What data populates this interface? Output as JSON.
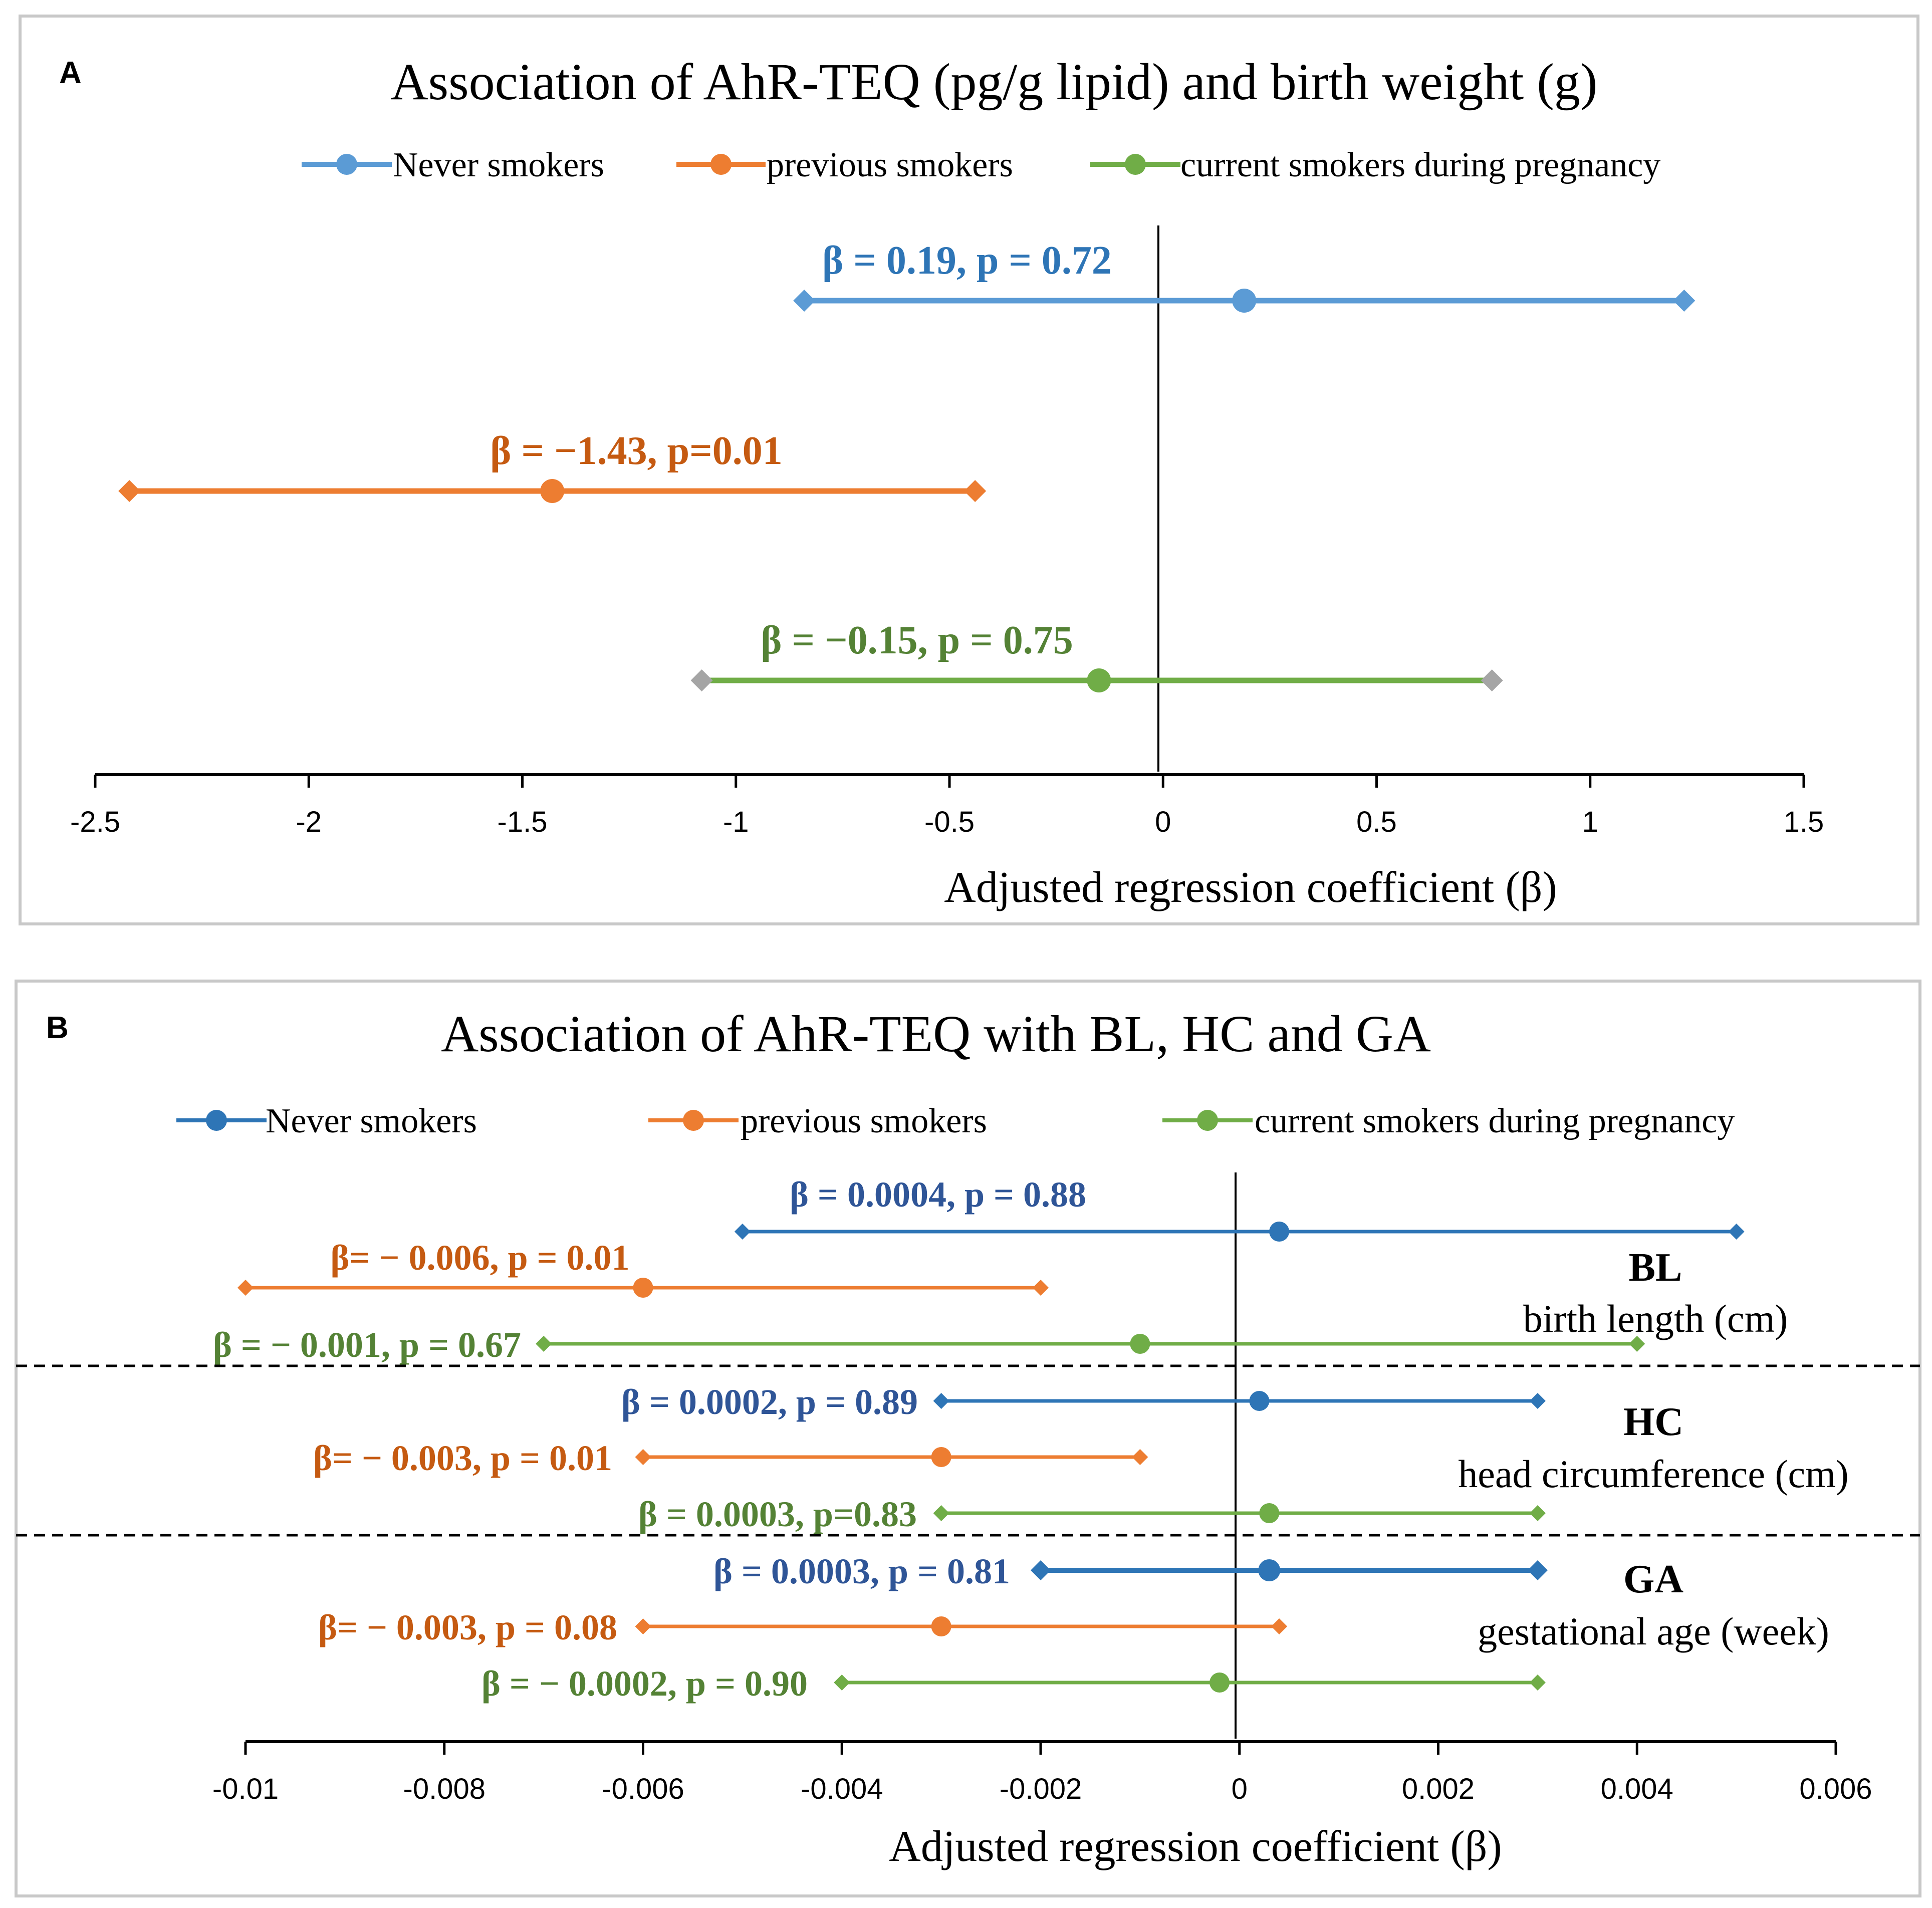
{
  "colors": {
    "never_a": "#5B9BD5",
    "previous": "#ED7D31",
    "current": "#70AD47",
    "never_b": "#2E75B6",
    "label_never_a": "#2E75B6",
    "label_previous": "#C55A11",
    "label_current": "#548235",
    "label_never_b": "#2F5597",
    "endpoint_grey": "#A5A5A5"
  },
  "chart_data": [
    {
      "panel": "A",
      "type": "forest",
      "title": "Association of AhR-TEQ (pg/g lipid) and birth weight (g)",
      "xlabel": "Adjusted regression coefficient (β)",
      "xlim": [
        -2.5,
        1.5
      ],
      "xticks": [
        -2.5,
        -2,
        -1.5,
        -1,
        -0.5,
        0,
        0.5,
        1,
        1.5
      ],
      "xtick_labels": [
        "-2.5",
        "-2",
        "-1.5",
        "-1",
        "-0.5",
        "0",
        "0.5",
        "1",
        "1.5"
      ],
      "legend": [
        "Never smokers",
        "previous smokers",
        "current smokers during pregnancy"
      ],
      "series": [
        {
          "name": "Never smokers",
          "estimate": 0.19,
          "lower": -0.84,
          "upper": 1.22,
          "label": "β = 0.19, p = 0.72"
        },
        {
          "name": "previous smokers",
          "estimate": -1.43,
          "lower": -2.42,
          "upper": -0.44,
          "label": "β = −1.43, p=0.01"
        },
        {
          "name": "current smokers during pregnancy",
          "estimate": -0.15,
          "lower": -1.08,
          "upper": 0.77,
          "label": "β = −0.15, p = 0.75"
        }
      ]
    },
    {
      "panel": "B",
      "type": "forest",
      "title": "Association of AhR-TEQ with BL, HC and  GA",
      "xlabel": "Adjusted regression coefficient (β)",
      "xlim": [
        -0.01,
        0.006
      ],
      "xticks": [
        -0.01,
        -0.008,
        -0.006,
        -0.004,
        -0.002,
        0,
        0.002,
        0.004,
        0.006
      ],
      "xtick_labels": [
        "-0.01",
        "-0.008",
        "-0.006",
        "-0.004",
        "-0.002",
        "0",
        "0.002",
        "0.004",
        "0.006"
      ],
      "legend": [
        "Never smokers",
        "previous smokers",
        "current smokers during pregnancy"
      ],
      "groups": [
        {
          "abbr": "BL",
          "desc": "birth length (cm)",
          "rows": [
            {
              "name": "Never smokers",
              "estimate": 0.0004,
              "lower": -0.005,
              "upper": 0.005,
              "label": "β = 0.0004, p = 0.88"
            },
            {
              "name": "previous smokers",
              "estimate": -0.006,
              "lower": -0.01,
              "upper": -0.002,
              "label": "β= − 0.006, p = 0.01"
            },
            {
              "name": "current smokers during pregnancy",
              "estimate": -0.001,
              "lower": -0.007,
              "upper": 0.004,
              "label": "β = − 0.001, p = 0.67"
            }
          ]
        },
        {
          "abbr": "HC",
          "desc": "head circumference (cm)",
          "rows": [
            {
              "name": "Never smokers",
              "estimate": 0.0002,
              "lower": -0.003,
              "upper": 0.003,
              "label": "β = 0.0002, p = 0.89"
            },
            {
              "name": "previous smokers",
              "estimate": -0.003,
              "lower": -0.006,
              "upper": -0.001,
              "label": "β= − 0.003, p = 0.01"
            },
            {
              "name": "current smokers during pregnancy",
              "estimate": 0.0003,
              "lower": -0.003,
              "upper": 0.003,
              "label": "β = 0.0003, p=0.83"
            }
          ]
        },
        {
          "abbr": "GA",
          "desc": "gestational age (week)",
          "rows": [
            {
              "name": "Never smokers",
              "estimate": 0.0003,
              "lower": -0.002,
              "upper": 0.003,
              "label": "β = 0.0003, p = 0.81"
            },
            {
              "name": "previous smokers",
              "estimate": -0.003,
              "lower": -0.006,
              "upper": 0.0004,
              "label": "β= − 0.003, p = 0.08"
            },
            {
              "name": "current smokers during pregnancy",
              "estimate": -0.0002,
              "lower": -0.004,
              "upper": 0.003,
              "label": "β = − 0.0002, p = 0.90"
            }
          ]
        }
      ]
    }
  ]
}
